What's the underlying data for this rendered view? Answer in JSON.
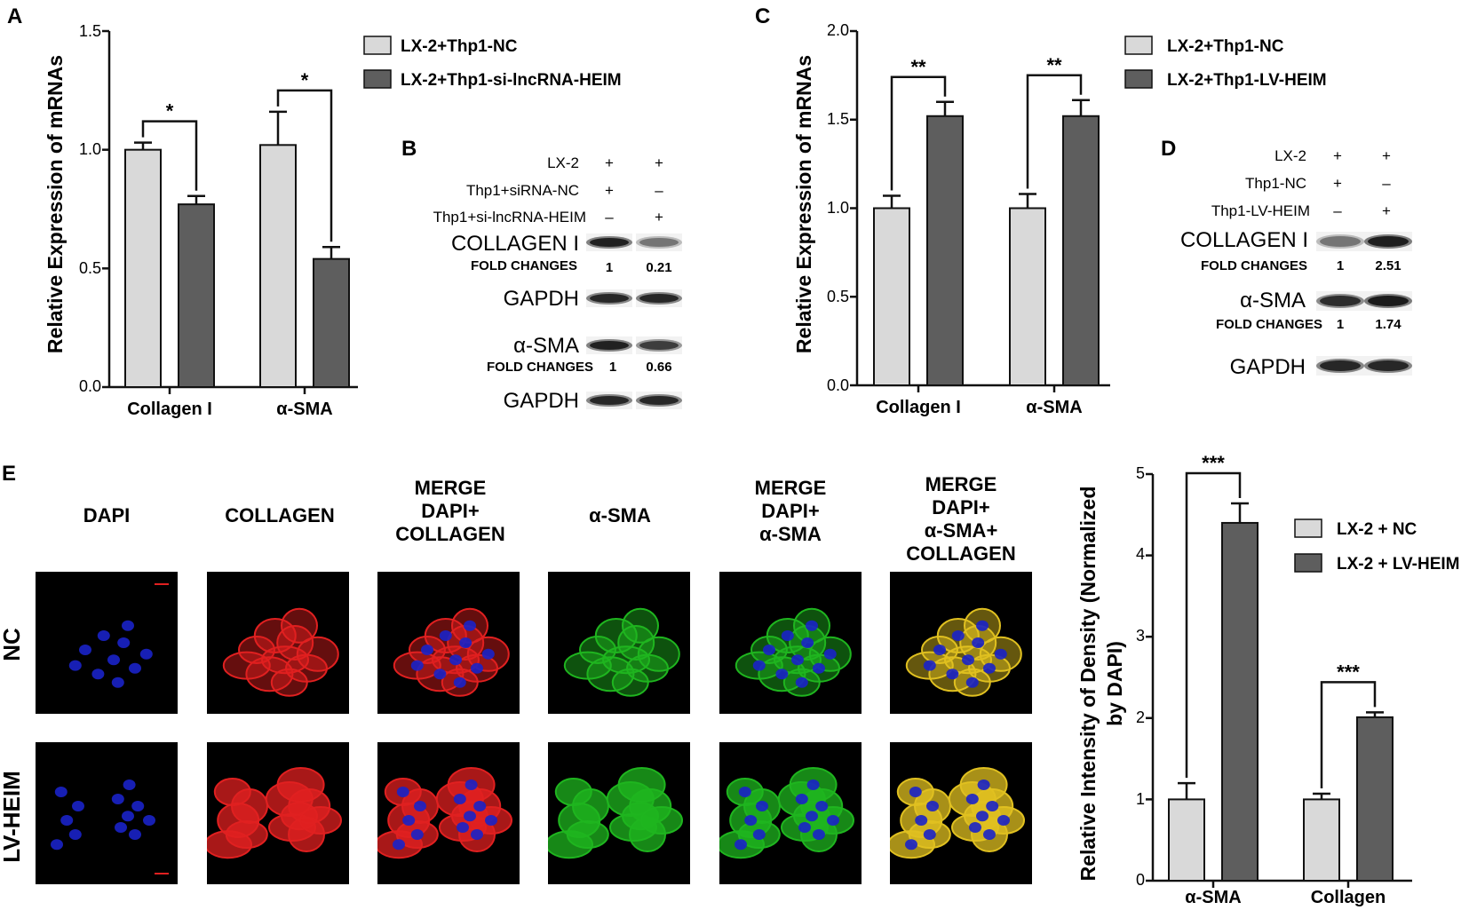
{
  "colors": {
    "light_bar": "#d9d9d9",
    "dark_bar": "#5e5e5e",
    "axis": "#111111",
    "dapi": "#1a22c8",
    "collagen": "#e02020",
    "alpha_sma": "#1fb51f",
    "merge_all": "#e0c020",
    "micrograph_bg": "#000000"
  },
  "panels": {
    "A": "A",
    "B": "B",
    "C": "C",
    "D": "D",
    "E": "E"
  },
  "chart_data": [
    {
      "panel": "A",
      "type": "bar",
      "ylabel": "Relative Expression of mRNAs",
      "ylim": [
        0,
        1.5
      ],
      "yticks": [
        "0.0",
        "0.5",
        "1.0",
        "1.5"
      ],
      "categories": [
        "Collagen I",
        "α-SMA"
      ],
      "series": [
        {
          "name": "LX-2+Thp1-NC",
          "values": [
            1.0,
            1.02
          ],
          "errors": [
            0.03,
            0.14
          ],
          "color": "#d9d9d9"
        },
        {
          "name": "LX-2+Thp1-si-lncRNA-HEIM",
          "values": [
            0.77,
            0.54
          ],
          "errors": [
            0.035,
            0.05
          ],
          "color": "#5e5e5e"
        }
      ],
      "significance": [
        "*",
        "*"
      ],
      "legend": "right",
      "grid": false
    },
    {
      "panel": "C",
      "type": "bar",
      "ylabel": "Relative Expression of mRNAs",
      "ylim": [
        0,
        2.0
      ],
      "yticks": [
        "0.0",
        "0.5",
        "1.0",
        "1.5",
        "2.0"
      ],
      "categories": [
        "Collagen I",
        "α-SMA"
      ],
      "series": [
        {
          "name": "LX-2+Thp1-NC",
          "values": [
            1.0,
            1.0
          ],
          "errors": [
            0.07,
            0.08
          ],
          "color": "#d9d9d9"
        },
        {
          "name": "LX-2+Thp1-LV-HEIM",
          "values": [
            1.52,
            1.52
          ],
          "errors": [
            0.08,
            0.09
          ],
          "color": "#5e5e5e"
        }
      ],
      "significance": [
        "**",
        "**"
      ],
      "legend": "right",
      "grid": false
    },
    {
      "panel": "E",
      "type": "bar",
      "ylabel": "Relative Intensity of Density (Normalized by DAPI)",
      "ylabel_lines": [
        "Relative Intensity of Density (Normalized",
        "by DAPI)"
      ],
      "ylim": [
        0,
        5
      ],
      "yticks": [
        "0",
        "1",
        "2",
        "3",
        "4",
        "5"
      ],
      "categories": [
        "α-SMA",
        "Collagen"
      ],
      "series": [
        {
          "name": "LX-2 + NC",
          "values": [
            1.0,
            1.0
          ],
          "errors": [
            0.2,
            0.07
          ],
          "color": "#d9d9d9"
        },
        {
          "name": "LX-2 + LV-HEIM",
          "values": [
            4.4,
            2.01
          ],
          "errors": [
            0.24,
            0.06
          ],
          "color": "#5e5e5e"
        }
      ],
      "significance": [
        "***",
        "***"
      ],
      "legend": "right",
      "grid": false
    }
  ],
  "blot_B": {
    "conditions": [
      {
        "label": "LX-2",
        "marks": [
          "+",
          "+"
        ]
      },
      {
        "label": "Thp1+siRNA-NC",
        "marks": [
          "+",
          "–"
        ]
      },
      {
        "label": "Thp1+si-lncRNA-HEIM",
        "marks": [
          "–",
          "+"
        ]
      }
    ],
    "rows": [
      {
        "label": "COLLAGEN I",
        "fold_label": "FOLD CHANGES",
        "folds": [
          "1",
          "0.21"
        ],
        "intensity": [
          0.95,
          0.45
        ]
      },
      {
        "label": "GAPDH",
        "intensity": [
          0.9,
          0.9
        ]
      },
      {
        "label": "α-SMA",
        "fold_label": "FOLD CHANGES",
        "folds": [
          "1",
          "0.66"
        ],
        "intensity": [
          0.95,
          0.75
        ]
      },
      {
        "label": "GAPDH",
        "intensity": [
          0.9,
          0.9
        ]
      }
    ]
  },
  "blot_D": {
    "conditions": [
      {
        "label": "LX-2",
        "marks": [
          "+",
          "+"
        ]
      },
      {
        "label": "Thp1-NC",
        "marks": [
          "+",
          "–"
        ]
      },
      {
        "label": "Thp1-LV-HEIM",
        "marks": [
          "–",
          "+"
        ]
      }
    ],
    "rows": [
      {
        "label": "COLLAGEN I",
        "fold_label": "FOLD CHANGES",
        "folds": [
          "1",
          "2.51"
        ],
        "intensity": [
          0.45,
          0.98
        ]
      },
      {
        "label": "α-SMA",
        "fold_label": "FOLD CHANGES",
        "folds": [
          "1",
          "1.74"
        ],
        "intensity": [
          0.85,
          1.0
        ]
      },
      {
        "label": "GAPDH",
        "intensity": [
          0.9,
          0.9
        ]
      }
    ]
  },
  "panel_E_images": {
    "columns": [
      {
        "lines": [
          "DAPI"
        ],
        "channels": [
          "dapi"
        ]
      },
      {
        "lines": [
          "COLLAGEN"
        ],
        "channels": [
          "collagen"
        ]
      },
      {
        "lines": [
          "MERGE",
          "DAPI+",
          "COLLAGEN"
        ],
        "channels": [
          "collagen",
          "dapi"
        ]
      },
      {
        "lines": [
          "α-SMA"
        ],
        "channels": [
          "alpha_sma"
        ]
      },
      {
        "lines": [
          "MERGE",
          "DAPI+",
          "α-SMA"
        ],
        "channels": [
          "alpha_sma",
          "dapi"
        ]
      },
      {
        "lines": [
          "MERGE",
          "DAPI+",
          "α-SMA+",
          "COLLAGEN"
        ],
        "channels": [
          "merge_all",
          "dapi"
        ]
      }
    ],
    "rows": [
      "NC",
      "LV-HEIM"
    ]
  }
}
